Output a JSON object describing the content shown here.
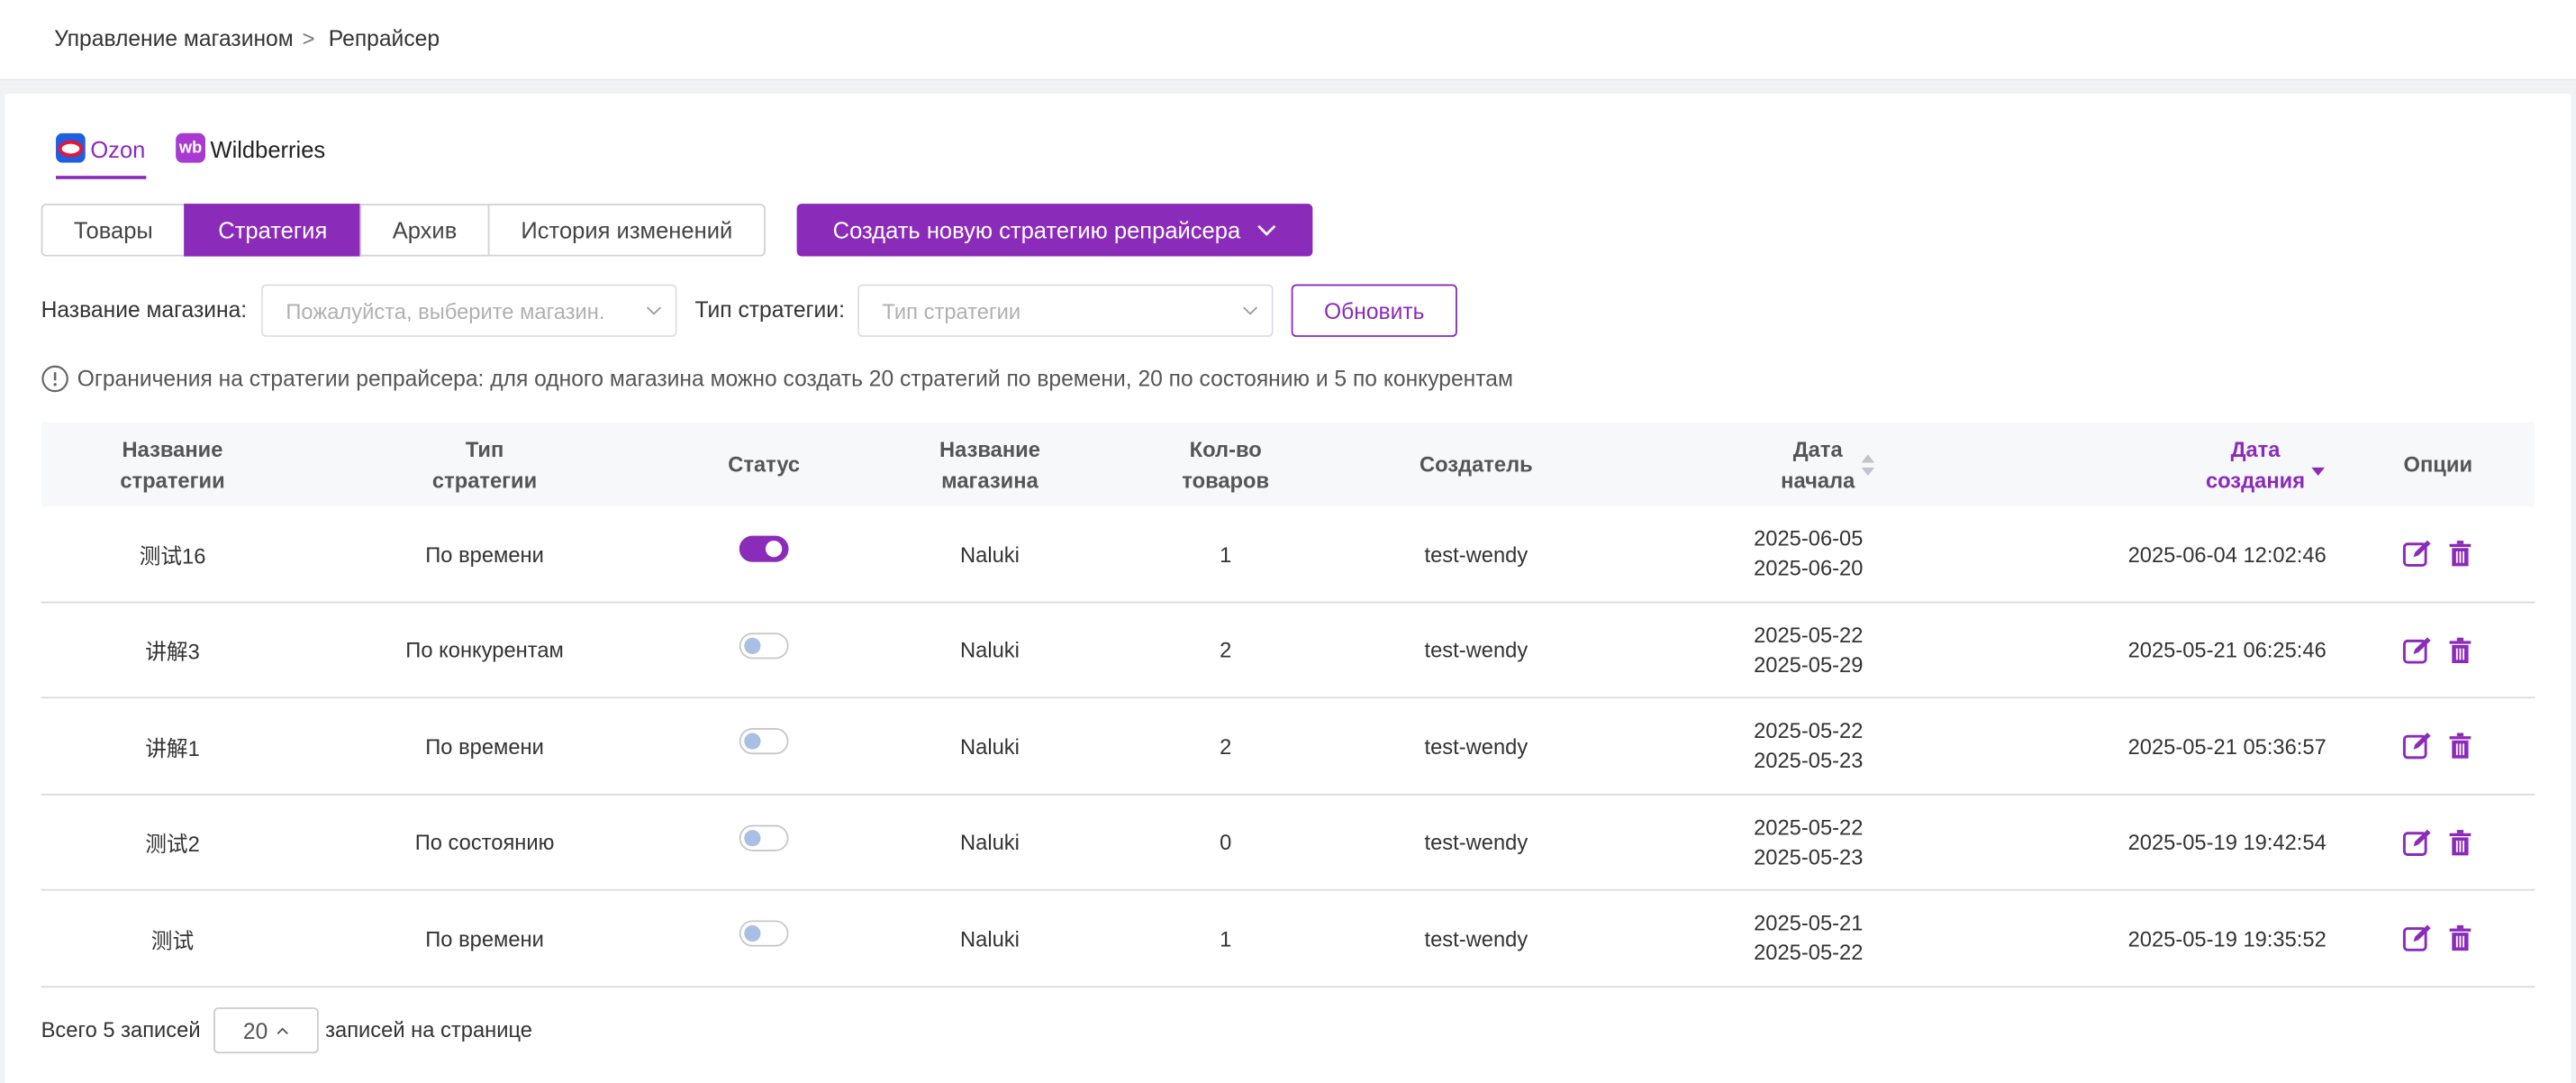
{
  "breadcrumb": {
    "items": [
      "Управление магазином",
      "Репрайсер"
    ],
    "separator": ">"
  },
  "platform_tabs": [
    {
      "label": "Ozon",
      "active": true
    },
    {
      "label": "Wildberries",
      "icon": "wb",
      "active": false
    }
  ],
  "view_tabs": [
    {
      "label": "Товары",
      "active": false
    },
    {
      "label": "Стратегия",
      "active": true
    },
    {
      "label": "Архив",
      "active": false
    },
    {
      "label": "История изменений",
      "active": false
    }
  ],
  "create_button": "Создать новую стратегию репрайсера",
  "filters": {
    "shop_label": "Название магазина:",
    "shop_placeholder": "Пожалуйста, выберите магазин.",
    "type_label": "Тип стратегии:",
    "type_placeholder": "Тип стратегии",
    "refresh": "Обновить"
  },
  "notice": "Ограничения на стратегии репрайсера: для одного магазина можно создать 20 стратегий по времени, 20 по состоянию и 5 по конкурентам",
  "table": {
    "columns": [
      "Название стратегии",
      "Тип стратегии",
      "Статус",
      "Название магазина",
      "Кол-во товаров",
      "Создатель",
      "Дата начала",
      "Дата создания",
      "Опции"
    ],
    "sorted_column": 7,
    "rows": [
      {
        "name": "测试16",
        "type": "По времени",
        "status": true,
        "shop": "Naluki",
        "count": 1,
        "creator": "test-wendy",
        "start": "2025-06-05",
        "end": "2025-06-20",
        "created": "2025-06-04 12:02:46"
      },
      {
        "name": "讲解3",
        "type": "По конкурентам",
        "status": false,
        "shop": "Naluki",
        "count": 2,
        "creator": "test-wendy",
        "start": "2025-05-22",
        "end": "2025-05-29",
        "created": "2025-05-21 06:25:46"
      },
      {
        "name": "讲解1",
        "type": "По времени",
        "status": false,
        "shop": "Naluki",
        "count": 2,
        "creator": "test-wendy",
        "start": "2025-05-22",
        "end": "2025-05-23",
        "created": "2025-05-21 05:36:57"
      },
      {
        "name": "测试2",
        "type": "По состоянию",
        "status": false,
        "shop": "Naluki",
        "count": 0,
        "creator": "test-wendy",
        "start": "2025-05-22",
        "end": "2025-05-23",
        "created": "2025-05-19 19:42:54"
      },
      {
        "name": "测试",
        "type": "По времени",
        "status": false,
        "shop": "Naluki",
        "count": 1,
        "creator": "test-wendy",
        "start": "2025-05-21",
        "end": "2025-05-22",
        "created": "2025-05-19 19:35:52"
      }
    ]
  },
  "pagination": {
    "total": "Всего 5 записей",
    "page_size": 20,
    "per_page": "записей на странице"
  }
}
